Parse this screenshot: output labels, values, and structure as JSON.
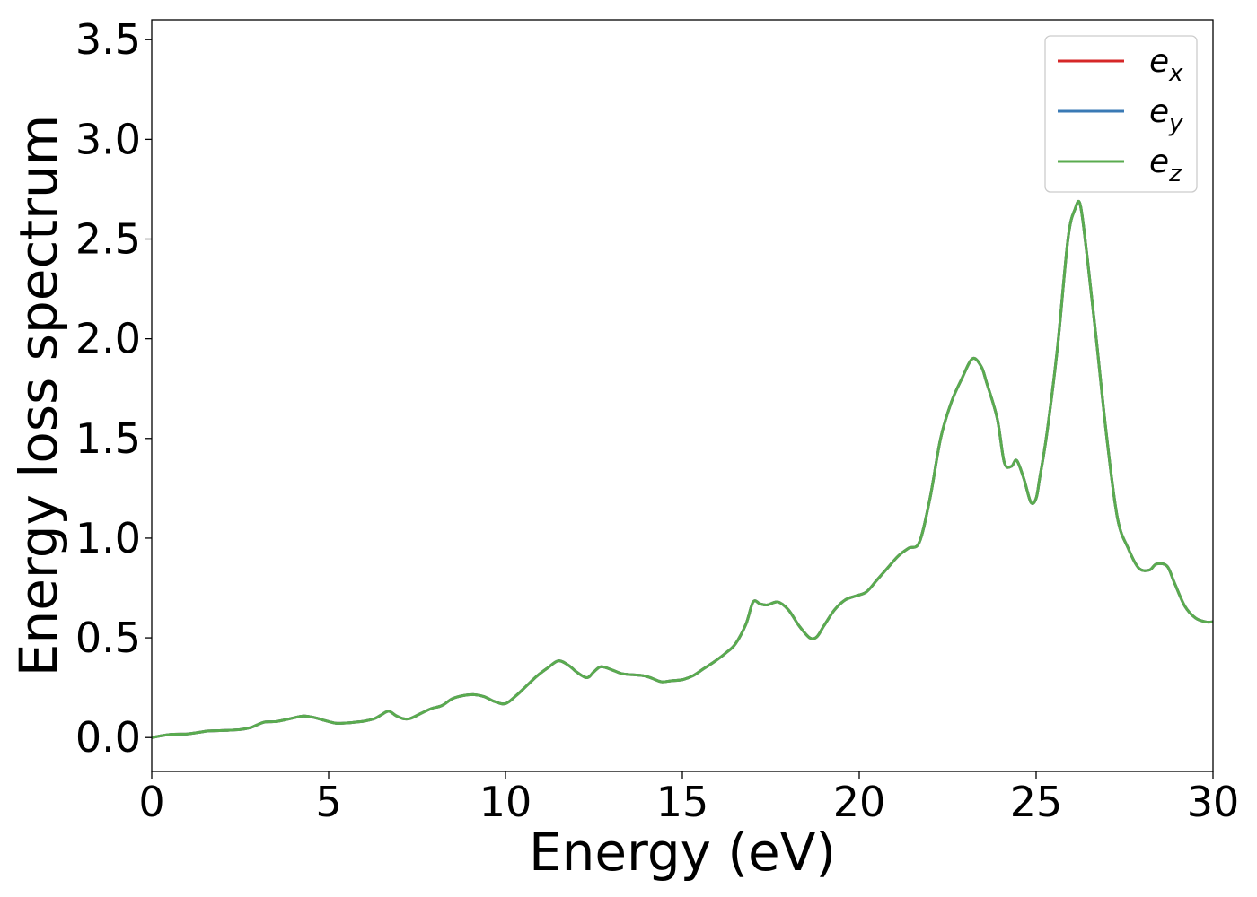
{
  "chart_data": {
    "type": "line",
    "title": "",
    "xlabel": "Energy (eV)",
    "ylabel": "Energy loss spectrum",
    "xlim": [
      0,
      30
    ],
    "ylim": [
      -0.17,
      3.6
    ],
    "xticks": [
      "0",
      "5",
      "10",
      "15",
      "20",
      "25",
      "30"
    ],
    "yticks": [
      "0.0",
      "0.5",
      "1.0",
      "1.5",
      "2.0",
      "2.5",
      "3.0",
      "3.5"
    ],
    "grid": false,
    "legend_position": "top-right",
    "colors": {
      "e_x": "#d62728",
      "e_y": "#3a7ab5",
      "e_z": "#5aab4f"
    },
    "x": [
      0,
      0.5,
      1.0,
      1.3,
      1.6,
      2.0,
      2.5,
      2.8,
      3.0,
      3.2,
      3.5,
      3.8,
      4.0,
      4.3,
      4.6,
      4.9,
      5.2,
      5.5,
      5.8,
      6.0,
      6.3,
      6.5,
      6.7,
      6.9,
      7.1,
      7.3,
      7.6,
      7.9,
      8.2,
      8.5,
      8.8,
      9.1,
      9.4,
      9.7,
      10.0,
      10.3,
      10.6,
      10.9,
      11.2,
      11.5,
      11.8,
      12.0,
      12.3,
      12.5,
      12.7,
      13.0,
      13.3,
      13.6,
      13.9,
      14.1,
      14.4,
      14.7,
      15.0,
      15.3,
      15.6,
      15.9,
      16.2,
      16.5,
      16.8,
      17.0,
      17.2,
      17.4,
      17.7,
      18.0,
      18.3,
      18.6,
      18.8,
      19.0,
      19.3,
      19.6,
      19.9,
      20.2,
      20.5,
      20.8,
      21.1,
      21.4,
      21.7,
      22.0,
      22.3,
      22.6,
      22.9,
      23.2,
      23.45,
      23.6,
      23.9,
      24.1,
      24.3,
      24.45,
      24.65,
      24.85,
      25.0,
      25.1,
      25.3,
      25.6,
      25.9,
      26.1,
      26.25,
      26.45,
      26.7,
      27.0,
      27.3,
      27.6,
      27.9,
      28.2,
      28.4,
      28.7,
      28.9,
      29.2,
      29.5,
      29.8,
      30.0
    ],
    "series": [
      {
        "name": "e_x",
        "values": [
          0.0,
          0.015,
          0.018,
          0.025,
          0.033,
          0.035,
          0.04,
          0.05,
          0.065,
          0.078,
          0.08,
          0.09,
          0.098,
          0.108,
          0.1,
          0.085,
          0.072,
          0.073,
          0.078,
          0.082,
          0.095,
          0.115,
          0.132,
          0.11,
          0.095,
          0.095,
          0.12,
          0.145,
          0.16,
          0.195,
          0.21,
          0.215,
          0.205,
          0.18,
          0.17,
          0.21,
          0.26,
          0.31,
          0.35,
          0.385,
          0.36,
          0.33,
          0.3,
          0.33,
          0.355,
          0.34,
          0.32,
          0.315,
          0.31,
          0.3,
          0.28,
          0.285,
          0.29,
          0.31,
          0.345,
          0.38,
          0.42,
          0.47,
          0.57,
          0.68,
          0.67,
          0.665,
          0.68,
          0.64,
          0.56,
          0.5,
          0.505,
          0.56,
          0.64,
          0.69,
          0.71,
          0.73,
          0.79,
          0.85,
          0.91,
          0.95,
          0.98,
          1.2,
          1.5,
          1.68,
          1.8,
          1.9,
          1.86,
          1.78,
          1.6,
          1.38,
          1.36,
          1.39,
          1.3,
          1.18,
          1.2,
          1.3,
          1.52,
          1.95,
          2.5,
          2.65,
          2.67,
          2.4,
          2.0,
          1.5,
          1.1,
          0.95,
          0.85,
          0.84,
          0.87,
          0.86,
          0.78,
          0.66,
          0.6,
          0.58,
          0.58
        ]
      },
      {
        "name": "e_y",
        "values": [
          0.0,
          0.015,
          0.018,
          0.025,
          0.033,
          0.035,
          0.04,
          0.05,
          0.065,
          0.078,
          0.08,
          0.09,
          0.098,
          0.108,
          0.1,
          0.085,
          0.072,
          0.073,
          0.078,
          0.082,
          0.095,
          0.115,
          0.132,
          0.11,
          0.095,
          0.095,
          0.12,
          0.145,
          0.16,
          0.195,
          0.21,
          0.215,
          0.205,
          0.18,
          0.17,
          0.21,
          0.26,
          0.31,
          0.35,
          0.385,
          0.36,
          0.33,
          0.3,
          0.33,
          0.355,
          0.34,
          0.32,
          0.315,
          0.31,
          0.3,
          0.28,
          0.285,
          0.29,
          0.31,
          0.345,
          0.38,
          0.42,
          0.47,
          0.57,
          0.68,
          0.67,
          0.665,
          0.68,
          0.64,
          0.56,
          0.5,
          0.505,
          0.56,
          0.64,
          0.69,
          0.71,
          0.73,
          0.79,
          0.85,
          0.91,
          0.95,
          0.98,
          1.2,
          1.5,
          1.68,
          1.8,
          1.9,
          1.86,
          1.78,
          1.6,
          1.38,
          1.36,
          1.39,
          1.3,
          1.18,
          1.2,
          1.3,
          1.52,
          1.95,
          2.5,
          2.65,
          2.67,
          2.4,
          2.0,
          1.5,
          1.1,
          0.95,
          0.85,
          0.84,
          0.87,
          0.86,
          0.78,
          0.66,
          0.6,
          0.58,
          0.58
        ]
      },
      {
        "name": "e_z",
        "values": [
          0.0,
          0.015,
          0.018,
          0.025,
          0.033,
          0.035,
          0.04,
          0.05,
          0.065,
          0.078,
          0.08,
          0.09,
          0.098,
          0.108,
          0.1,
          0.085,
          0.072,
          0.073,
          0.078,
          0.082,
          0.095,
          0.115,
          0.132,
          0.11,
          0.095,
          0.095,
          0.12,
          0.145,
          0.16,
          0.195,
          0.21,
          0.215,
          0.205,
          0.18,
          0.17,
          0.21,
          0.26,
          0.31,
          0.35,
          0.385,
          0.36,
          0.33,
          0.3,
          0.33,
          0.355,
          0.34,
          0.32,
          0.315,
          0.31,
          0.3,
          0.28,
          0.285,
          0.29,
          0.31,
          0.345,
          0.38,
          0.42,
          0.47,
          0.57,
          0.68,
          0.67,
          0.665,
          0.68,
          0.64,
          0.56,
          0.5,
          0.505,
          0.56,
          0.64,
          0.69,
          0.71,
          0.73,
          0.79,
          0.85,
          0.91,
          0.95,
          0.98,
          1.2,
          1.5,
          1.68,
          1.8,
          1.9,
          1.86,
          1.78,
          1.6,
          1.38,
          1.36,
          1.39,
          1.3,
          1.18,
          1.2,
          1.3,
          1.52,
          1.95,
          2.5,
          2.65,
          2.67,
          2.4,
          2.0,
          1.5,
          1.1,
          0.95,
          0.85,
          0.84,
          0.87,
          0.86,
          0.78,
          0.66,
          0.6,
          0.58,
          0.58
        ]
      }
    ],
    "legend": [
      {
        "base": "e",
        "sub": "x"
      },
      {
        "base": "e",
        "sub": "y"
      },
      {
        "base": "e",
        "sub": "z"
      }
    ]
  }
}
